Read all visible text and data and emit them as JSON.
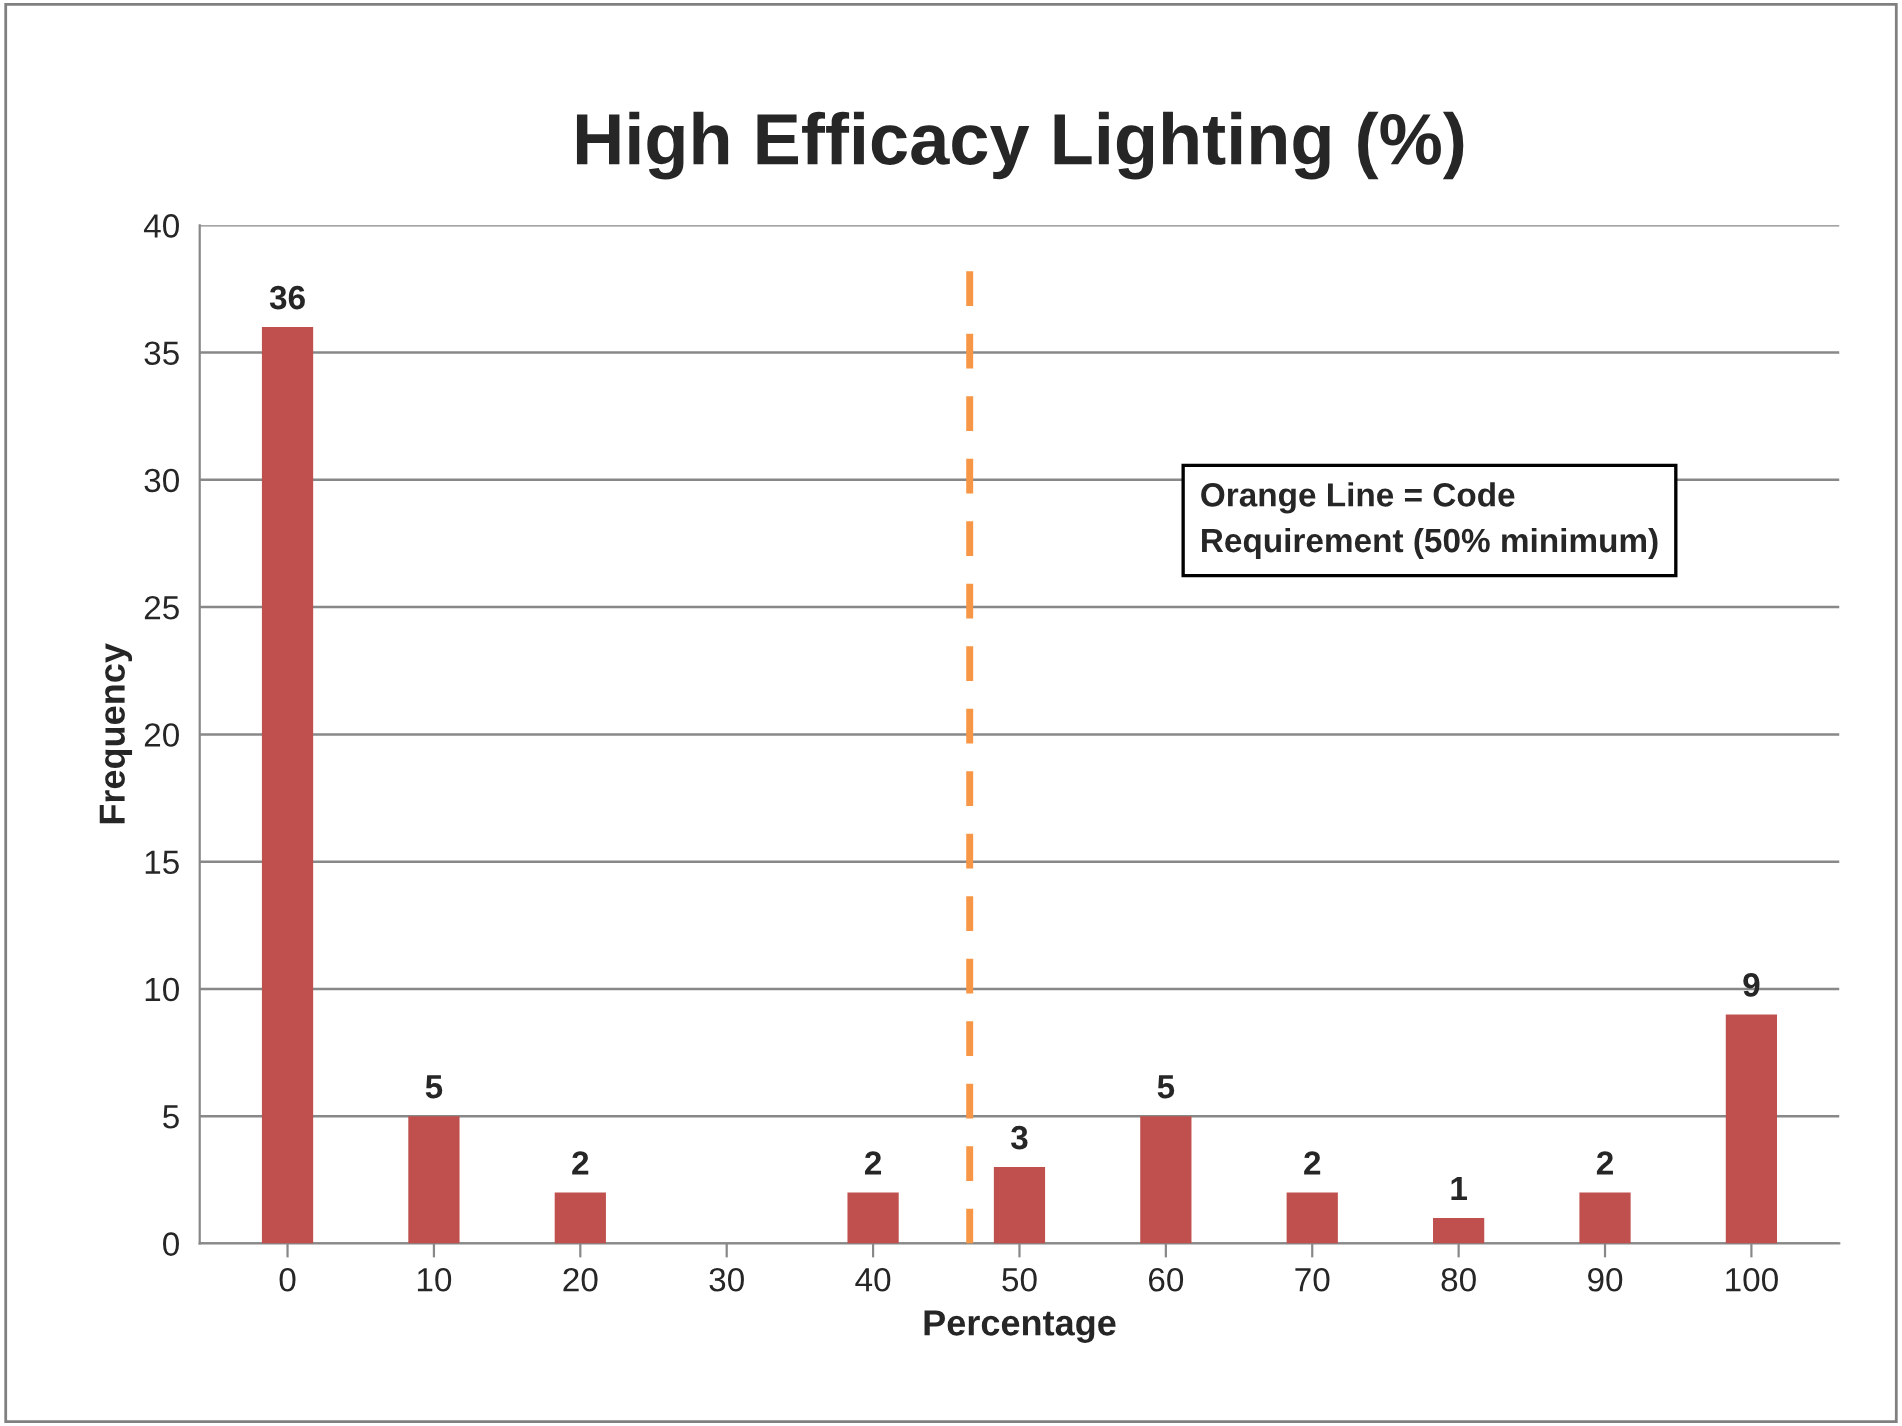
{
  "chart_data": {
    "type": "bar",
    "title": "High Efficacy Lighting (%)",
    "xlabel": "Percentage",
    "ylabel": "Frequency",
    "categories": [
      "0",
      "10",
      "20",
      "30",
      "40",
      "50",
      "60",
      "70",
      "80",
      "90",
      "100"
    ],
    "values": [
      36,
      5,
      2,
      null,
      2,
      3,
      5,
      2,
      1,
      2,
      9
    ],
    "value_labels": [
      "36",
      "5",
      "2",
      null,
      "2",
      "3",
      "5",
      "2",
      "1",
      "2",
      "9"
    ],
    "color": "#c0504d",
    "ylim": [
      0,
      40
    ],
    "yticks": [
      0,
      5,
      10,
      15,
      20,
      25,
      30,
      35,
      40
    ],
    "grid": "y",
    "legend": false,
    "ref_lines": [
      {
        "axis": "x",
        "value": "50",
        "color": "#f79646",
        "line_style": "dashed"
      }
    ],
    "annotations": [
      "Orange Line = Code\nRequirement (50% minimum)"
    ]
  }
}
